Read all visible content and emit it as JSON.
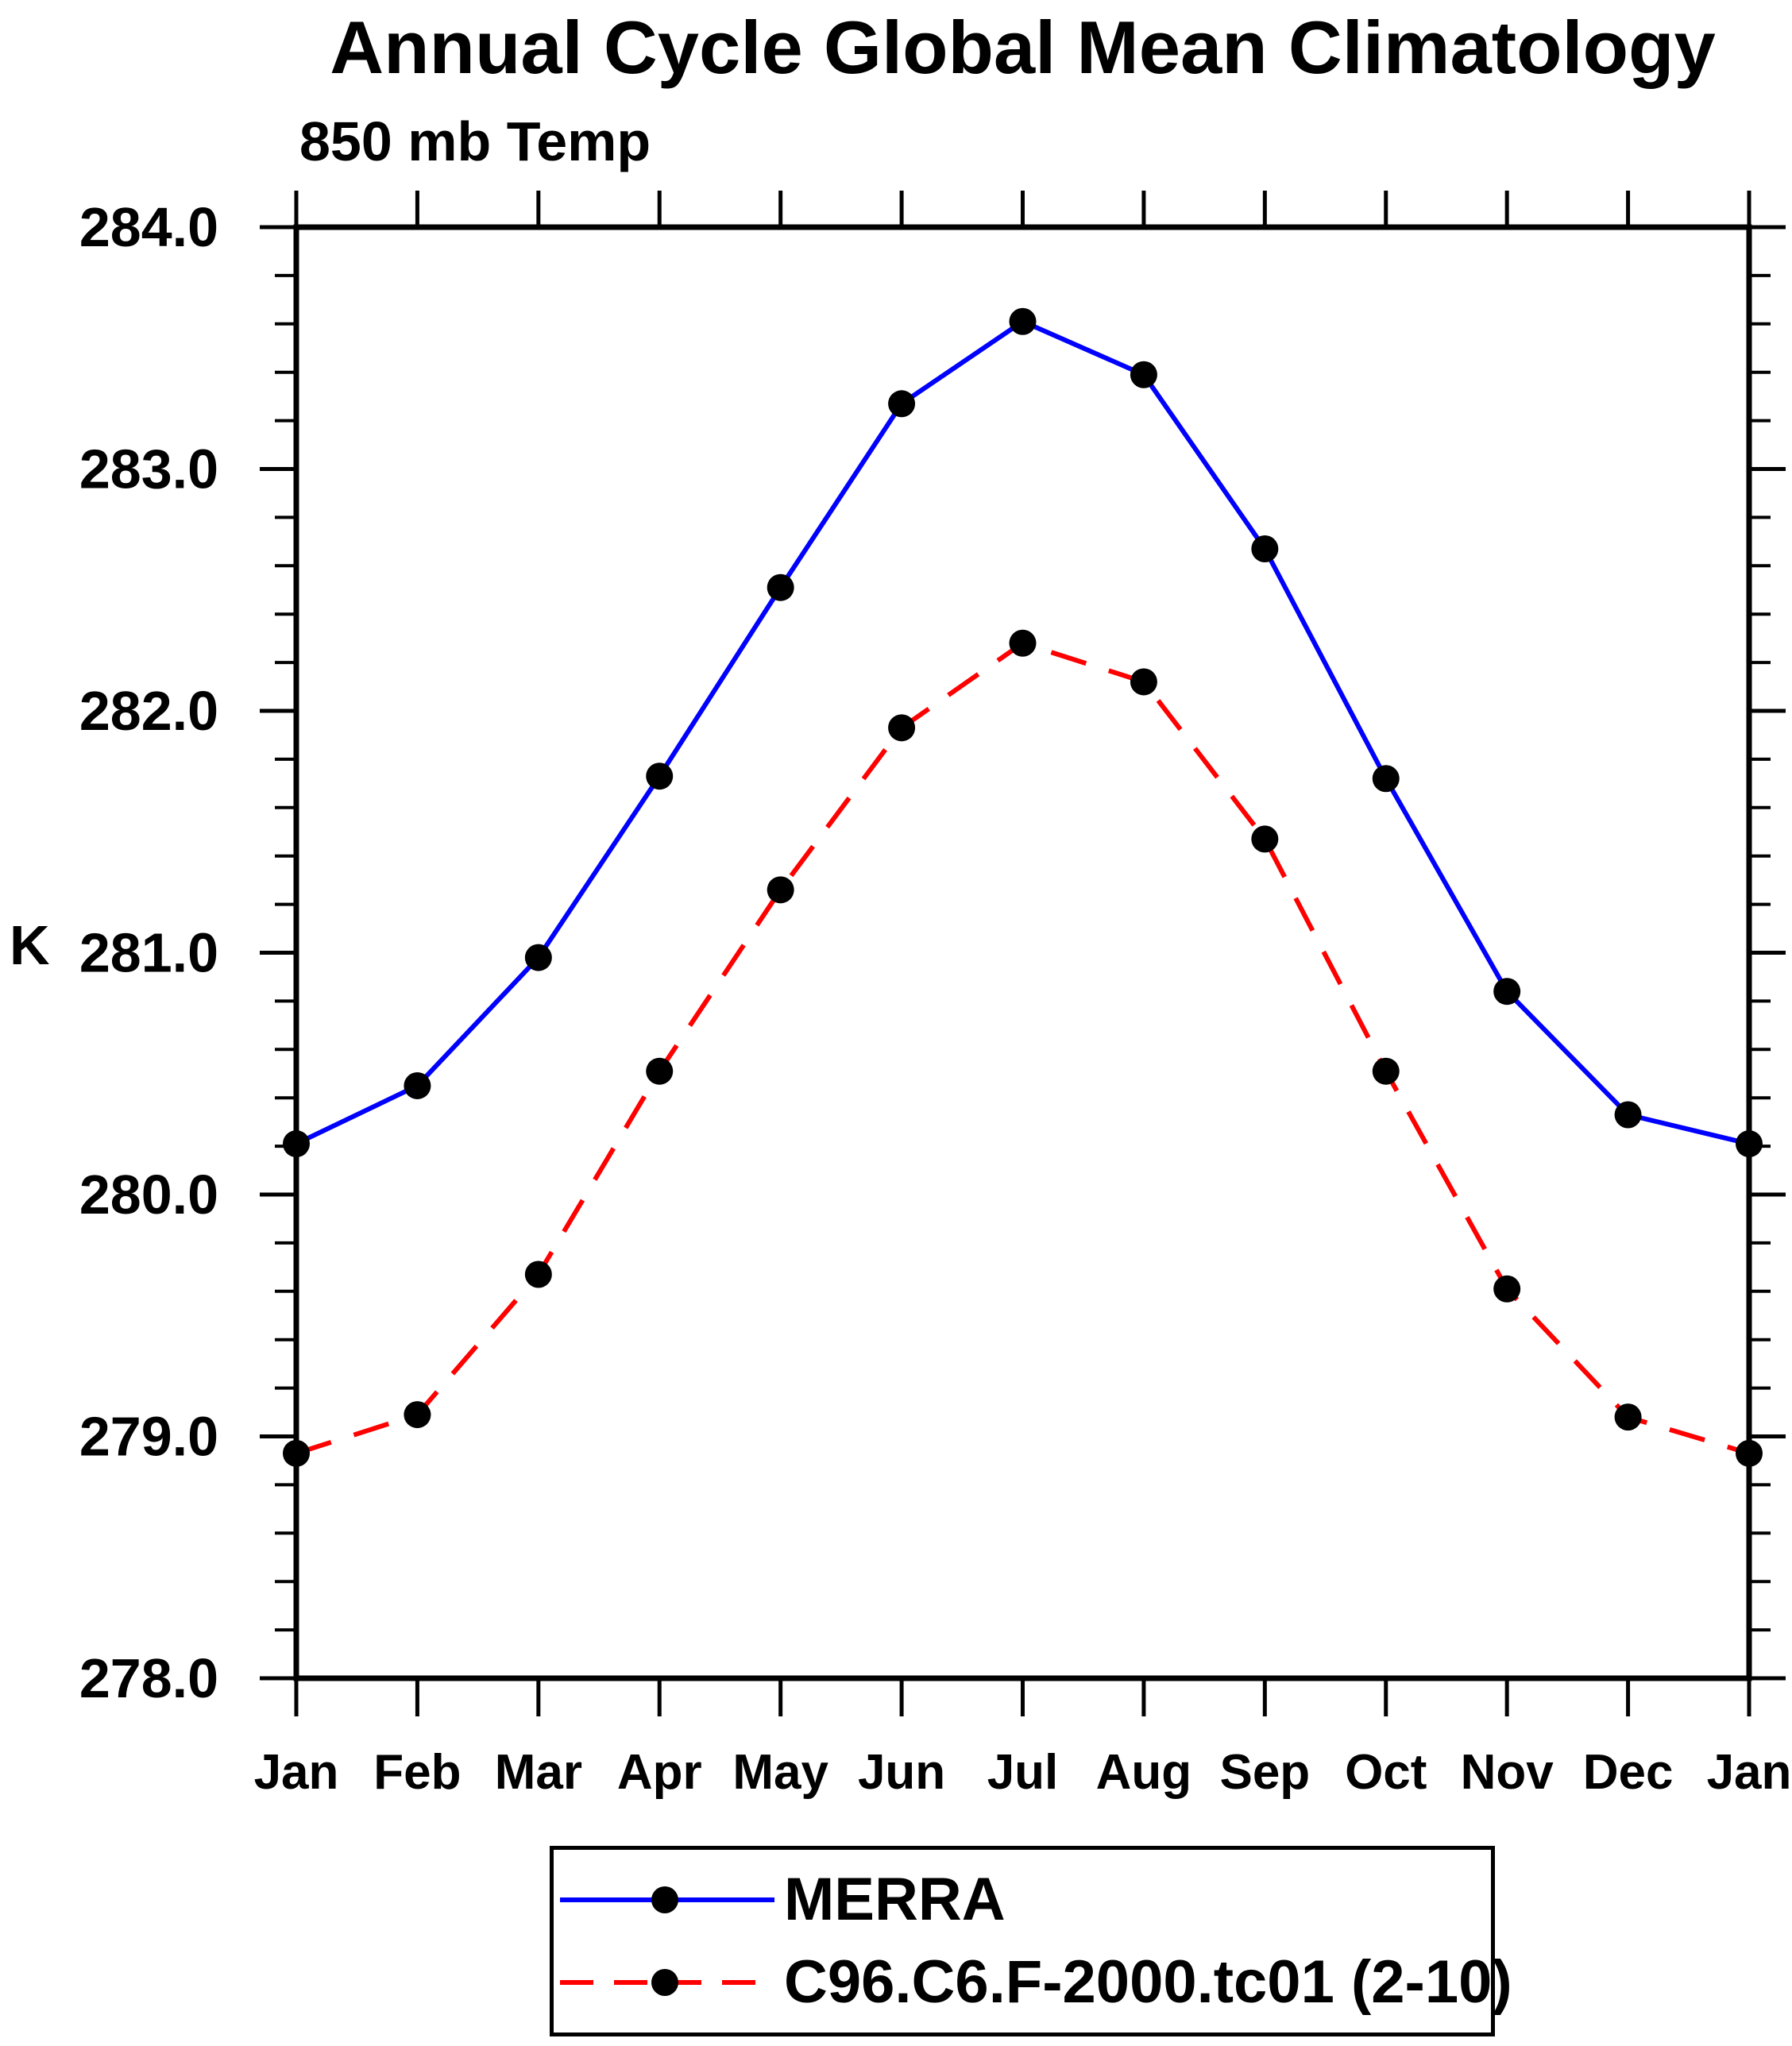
{
  "chart_data": {
    "type": "line",
    "title": "Annual Cycle Global Mean Climatology",
    "subtitle": "850 mb Temp",
    "ylabel": "K",
    "background_color": "#ffffff",
    "axis_color": "#000000",
    "ylim": [
      278.0,
      284.0
    ],
    "ytick_interval": 1.0,
    "ytick_minor_interval": 0.2,
    "ytick_labels": [
      "284.0",
      "283.0",
      "282.0",
      "281.0",
      "280.0",
      "279.0",
      "278.0"
    ],
    "categories": [
      "Jan",
      "Feb",
      "Mar",
      "Apr",
      "May",
      "Jun",
      "Jul",
      "Aug",
      "Sep",
      "Oct",
      "Nov",
      "Dec",
      "Jan"
    ],
    "grid": false,
    "legend_position": "bottom",
    "series": [
      {
        "name": "MERRA",
        "color": "#0000ff",
        "line_style": "solid",
        "marker": "filled-circle",
        "marker_color": "#000000",
        "values": [
          280.21,
          280.45,
          280.98,
          281.73,
          282.51,
          283.27,
          283.61,
          283.39,
          282.67,
          281.72,
          280.84,
          280.33,
          280.21
        ]
      },
      {
        "name": "C96.C6.F-2000.tc01 (2-10)",
        "color": "#ff0000",
        "line_style": "dashed",
        "marker": "filled-circle",
        "marker_color": "#000000",
        "values": [
          278.93,
          279.09,
          279.67,
          280.51,
          281.26,
          281.93,
          282.28,
          282.12,
          281.47,
          280.51,
          279.61,
          279.08,
          278.93
        ]
      }
    ]
  }
}
